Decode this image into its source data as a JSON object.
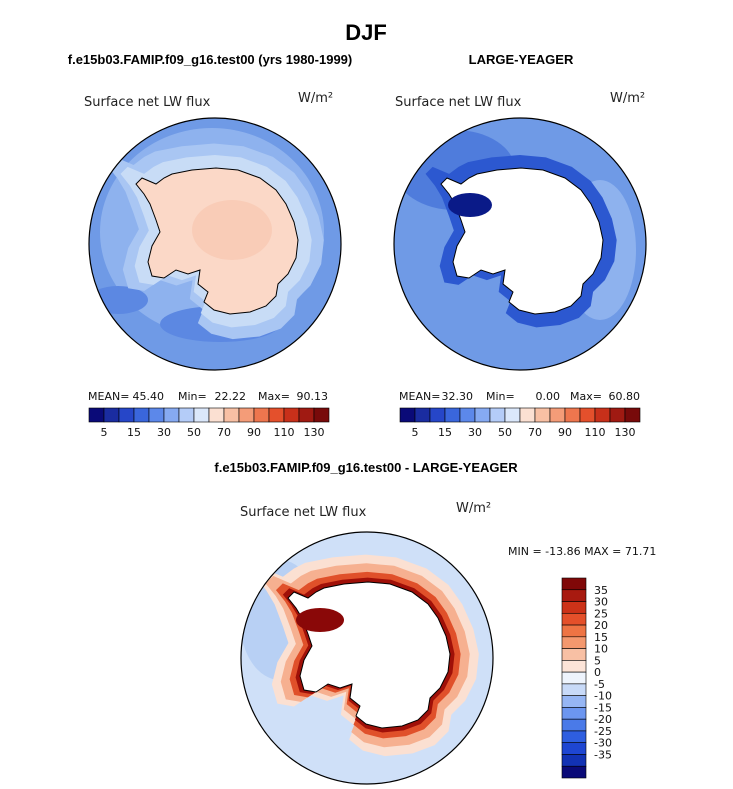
{
  "title": "DJF",
  "panels": [
    {
      "subtitle": "f.e15b03.FAMIP.f09_g16.test00 (yrs 1980-1999)",
      "left_label": "Surface net LW flux",
      "units": "W/m²",
      "stats": {
        "mean_label": "MEAN=",
        "mean": "45.40",
        "min_label": "Min=",
        "min": "22.22",
        "max_label": "Max=",
        "max": "90.13"
      },
      "land_fill": "#fbd8c7",
      "ring_fill": "#c8dcf6"
    },
    {
      "subtitle": "LARGE-YEAGER",
      "left_label": "Surface net LW flux",
      "units": "W/m²",
      "stats": {
        "mean_label": "MEAN=",
        "mean": "32.30",
        "min_label": "Min=",
        "min": "0.00",
        "max_label": "Max=",
        "max": "60.80"
      },
      "land_fill": "#ffffff",
      "ring_fill": "#c8dcf6"
    },
    {
      "subtitle": "f.e15b03.FAMIP.f09_g16.test00 - LARGE-YEAGER",
      "left_label": "Surface net LW flux",
      "units": "W/m²",
      "stats_text": "MIN = -13.86 MAX =  71.71",
      "land_fill": "#ffffff",
      "ring_fill": "#a01008"
    }
  ],
  "colorbar_h": {
    "colors": [
      "#0a0a78",
      "#1a2ca0",
      "#2646c8",
      "#3a66dc",
      "#5c88ea",
      "#86aaf2",
      "#b4ccf8",
      "#dbe8fb",
      "#fbe0d2",
      "#f8c0a4",
      "#f49c78",
      "#ee764e",
      "#e4502c",
      "#c8301a",
      "#a01a12",
      "#780a0a"
    ],
    "tick_labels": [
      "5",
      "15",
      "30",
      "50",
      "70",
      "90",
      "110",
      "130"
    ]
  },
  "colorbar_v": {
    "colors": [
      "#0a0a78",
      "#1232b4",
      "#1e46d2",
      "#2e5ee0",
      "#4a7ae8",
      "#6c96f0",
      "#96b6f4",
      "#c8daf8",
      "#eef4fd",
      "#fce4d8",
      "#f8c0a4",
      "#f4986e",
      "#ee7444",
      "#e4502a",
      "#cc3218",
      "#a81a10",
      "#800808"
    ],
    "tick_labels": [
      "-35",
      "-30",
      "-25",
      "-20",
      "-15",
      "-10",
      "-5",
      "0",
      "5",
      "10",
      "15",
      "20",
      "25",
      "30",
      "35"
    ]
  },
  "chart_data": [
    {
      "type": "heatmap",
      "title": "f.e15b03.FAMIP.f09_g16.test00 (yrs 1980-1999)",
      "field": "Surface net LW flux",
      "units": "W/m2",
      "season": "DJF",
      "levels": [
        5,
        10,
        15,
        20,
        30,
        40,
        50,
        60,
        70,
        80,
        90,
        100,
        110,
        120,
        130
      ],
      "mean": 45.4,
      "min": 22.22,
      "max": 90.13
    },
    {
      "type": "heatmap",
      "title": "LARGE-YEAGER",
      "field": "Surface net LW flux",
      "units": "W/m2",
      "season": "DJF",
      "levels": [
        5,
        10,
        15,
        20,
        30,
        40,
        50,
        60,
        70,
        80,
        90,
        100,
        110,
        120,
        130
      ],
      "mean": 32.3,
      "min": 0.0,
      "max": 60.8
    },
    {
      "type": "heatmap",
      "title": "f.e15b03.FAMIP.f09_g16.test00 - LARGE-YEAGER",
      "field": "Surface net LW flux",
      "units": "W/m2",
      "season": "DJF",
      "levels": [
        -35,
        -30,
        -25,
        -20,
        -15,
        -10,
        -5,
        0,
        5,
        10,
        15,
        20,
        25,
        30,
        35
      ],
      "min": -13.86,
      "max": 71.71
    }
  ]
}
